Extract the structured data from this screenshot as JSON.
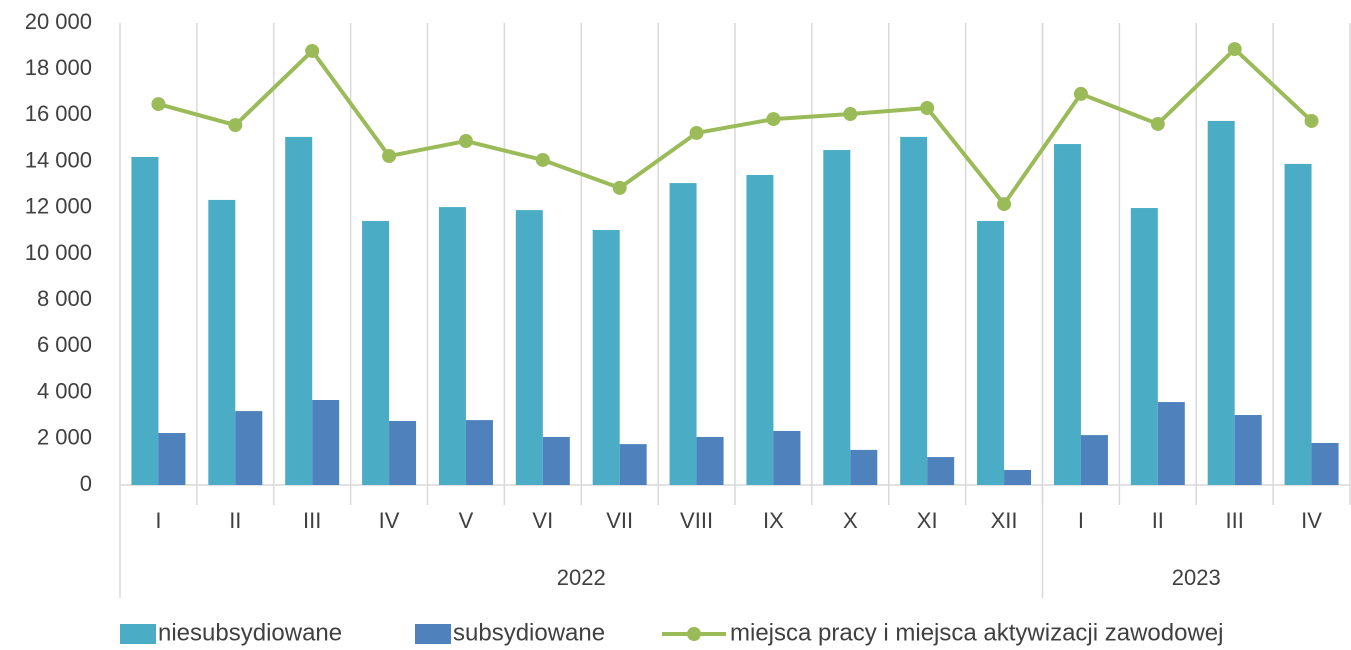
{
  "chart_data": {
    "type": "bar_line",
    "categories": [
      "I",
      "II",
      "III",
      "IV",
      "V",
      "VI",
      "VII",
      "VIII",
      "IX",
      "X",
      "XI",
      "XII",
      "I",
      "II",
      "III",
      "IV"
    ],
    "category_groups": [
      {
        "label": "2022",
        "size": 12
      },
      {
        "label": "2023",
        "size": 4
      }
    ],
    "series": [
      {
        "name": "niesubsydiowane",
        "type": "bar",
        "color": "#4bacc6",
        "values": [
          14200,
          12340,
          15070,
          11430,
          12030,
          11900,
          11040,
          13070,
          13420,
          14500,
          15070,
          11430,
          14760,
          11990,
          15760,
          13900
        ]
      },
      {
        "name": "subsydiowane",
        "type": "bar",
        "color": "#4f81bd",
        "values": [
          2250,
          3200,
          3680,
          2770,
          2810,
          2080,
          1770,
          2080,
          2340,
          1520,
          1210,
          650,
          2160,
          3590,
          3030,
          1820
        ]
      },
      {
        "name": "miejsca pracy i miejsca aktywizacji zawodowej",
        "type": "line",
        "color": "#9bbb59",
        "values": [
          16490,
          15580,
          18790,
          14240,
          14890,
          14070,
          12860,
          15240,
          15840,
          16060,
          16320,
          12160,
          16930,
          15630,
          18870,
          15760
        ]
      }
    ],
    "ylim": [
      0,
      20000
    ],
    "yticks": [
      0,
      {
        "value": 2000,
        "label": "2 000"
      },
      {
        "value": 4000,
        "label": "4 000"
      },
      {
        "value": 6000,
        "label": "6 000"
      },
      {
        "value": 8000,
        "label": "8 000"
      },
      {
        "value": 10000,
        "label": "10 000"
      },
      {
        "value": 12000,
        "label": "12 000"
      },
      {
        "value": 14000,
        "label": "14 000"
      },
      {
        "value": 16000,
        "label": "16 000"
      },
      {
        "value": 18000,
        "label": "18 000"
      },
      {
        "value": 20000,
        "label": "20 000"
      }
    ],
    "legend": "bottom"
  }
}
